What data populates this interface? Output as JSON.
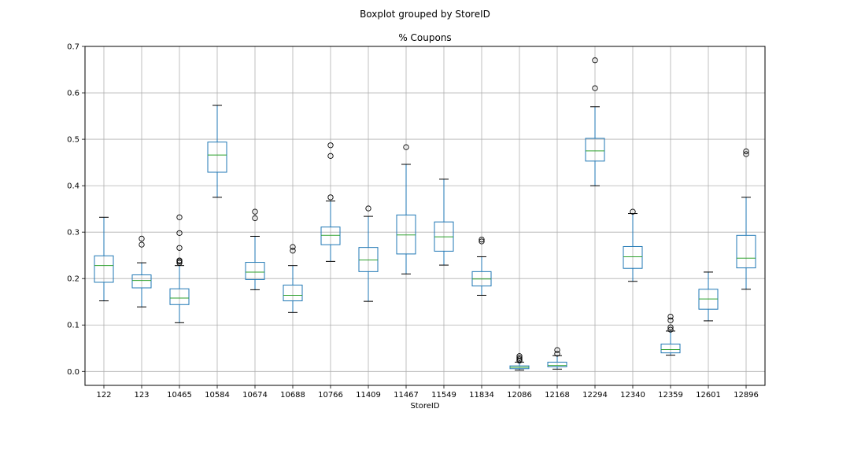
{
  "chart_data": {
    "type": "boxplot",
    "suptitle": "Boxplot grouped by StoreID",
    "title": "% Coupons",
    "xlabel": "StoreID",
    "ylabel": "",
    "ylim": [
      -0.03,
      0.7
    ],
    "yticks": [
      0.0,
      0.1,
      0.2,
      0.3,
      0.4,
      0.5,
      0.6,
      0.7
    ],
    "ytick_labels": [
      "0.0",
      "0.1",
      "0.2",
      "0.3",
      "0.4",
      "0.5",
      "0.6",
      "0.7"
    ],
    "grid": true,
    "colors": {
      "box": "#1f77b4",
      "median": "#2ca02c",
      "whisker": "#000000",
      "grid": "#b0b0b0",
      "flier": "#000000"
    },
    "categories": [
      "122",
      "123",
      "10465",
      "10584",
      "10674",
      "10688",
      "10766",
      "11409",
      "11467",
      "11549",
      "11834",
      "12086",
      "12168",
      "12294",
      "12340",
      "12359",
      "12601",
      "12896"
    ],
    "boxes": [
      {
        "label": "122",
        "whislo": 0.152,
        "q1": 0.192,
        "med": 0.228,
        "q3": 0.249,
        "whishi": 0.332,
        "fliers": []
      },
      {
        "label": "123",
        "whislo": 0.139,
        "q1": 0.18,
        "med": 0.196,
        "q3": 0.208,
        "whishi": 0.234,
        "fliers": [
          0.273,
          0.286
        ]
      },
      {
        "label": "10465",
        "whislo": 0.105,
        "q1": 0.144,
        "med": 0.158,
        "q3": 0.178,
        "whishi": 0.228,
        "fliers": [
          0.234,
          0.237,
          0.239,
          0.266,
          0.298,
          0.332
        ]
      },
      {
        "label": "10584",
        "whislo": 0.375,
        "q1": 0.429,
        "med": 0.466,
        "q3": 0.494,
        "whishi": 0.573,
        "fliers": []
      },
      {
        "label": "10674",
        "whislo": 0.176,
        "q1": 0.198,
        "med": 0.214,
        "q3": 0.235,
        "whishi": 0.291,
        "fliers": [
          0.33,
          0.344
        ]
      },
      {
        "label": "10688",
        "whislo": 0.127,
        "q1": 0.152,
        "med": 0.164,
        "q3": 0.186,
        "whishi": 0.228,
        "fliers": [
          0.26,
          0.268
        ]
      },
      {
        "label": "10766",
        "whislo": 0.237,
        "q1": 0.273,
        "med": 0.293,
        "q3": 0.311,
        "whishi": 0.367,
        "fliers": [
          0.375,
          0.464,
          0.487
        ]
      },
      {
        "label": "11409",
        "whislo": 0.151,
        "q1": 0.215,
        "med": 0.24,
        "q3": 0.267,
        "whishi": 0.334,
        "fliers": [
          0.351
        ]
      },
      {
        "label": "11467",
        "whislo": 0.21,
        "q1": 0.253,
        "med": 0.294,
        "q3": 0.337,
        "whishi": 0.446,
        "fliers": [
          0.483
        ]
      },
      {
        "label": "11549",
        "whislo": 0.229,
        "q1": 0.259,
        "med": 0.29,
        "q3": 0.322,
        "whishi": 0.414,
        "fliers": []
      },
      {
        "label": "11834",
        "whislo": 0.164,
        "q1": 0.184,
        "med": 0.199,
        "q3": 0.215,
        "whishi": 0.247,
        "fliers": [
          0.28,
          0.284
        ]
      },
      {
        "label": "12086",
        "whislo": 0.003,
        "q1": 0.006,
        "med": 0.009,
        "q3": 0.012,
        "whishi": 0.02,
        "fliers": [
          0.023,
          0.026,
          0.029,
          0.033
        ]
      },
      {
        "label": "12168",
        "whislo": 0.005,
        "q1": 0.01,
        "med": 0.013,
        "q3": 0.02,
        "whishi": 0.034,
        "fliers": [
          0.038,
          0.046
        ]
      },
      {
        "label": "12294",
        "whislo": 0.4,
        "q1": 0.453,
        "med": 0.475,
        "q3": 0.502,
        "whishi": 0.57,
        "fliers": [
          0.61,
          0.67
        ]
      },
      {
        "label": "12340",
        "whislo": 0.194,
        "q1": 0.222,
        "med": 0.247,
        "q3": 0.269,
        "whishi": 0.34,
        "fliers": [
          0.344
        ]
      },
      {
        "label": "12359",
        "whislo": 0.035,
        "q1": 0.04,
        "med": 0.047,
        "q3": 0.059,
        "whishi": 0.087,
        "fliers": [
          0.09,
          0.095,
          0.11,
          0.118
        ]
      },
      {
        "label": "12601",
        "whislo": 0.109,
        "q1": 0.134,
        "med": 0.156,
        "q3": 0.177,
        "whishi": 0.214,
        "fliers": []
      },
      {
        "label": "12896",
        "whislo": 0.177,
        "q1": 0.223,
        "med": 0.244,
        "q3": 0.293,
        "whishi": 0.375,
        "fliers": [
          0.468,
          0.474
        ]
      }
    ]
  }
}
